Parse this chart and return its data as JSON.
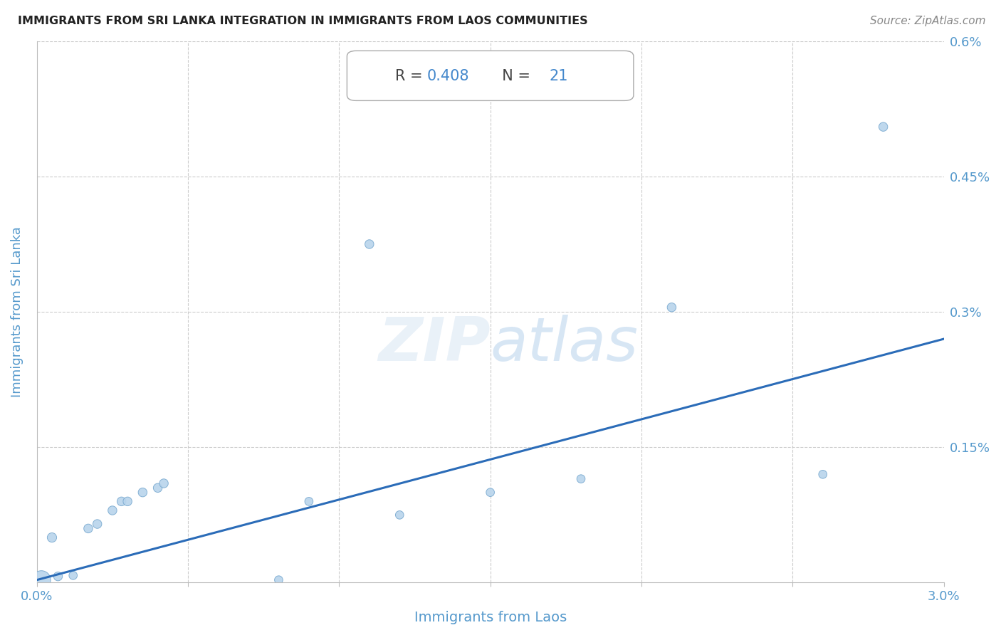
{
  "title": "IMMIGRANTS FROM SRI LANKA INTEGRATION IN IMMIGRANTS FROM LAOS COMMUNITIES",
  "source": "Source: ZipAtlas.com",
  "xlabel": "Immigrants from Laos",
  "ylabel": "Immigrants from Sri Lanka",
  "R": 0.408,
  "N": 21,
  "xlim": [
    0.0,
    0.03
  ],
  "ylim": [
    0.0,
    0.006
  ],
  "scatter_x": [
    0.00015,
    0.0005,
    0.0007,
    0.0012,
    0.0017,
    0.002,
    0.0025,
    0.0028,
    0.003,
    0.0035,
    0.004,
    0.0042,
    0.008,
    0.009,
    0.011,
    0.012,
    0.015,
    0.018,
    0.021,
    0.026,
    0.028
  ],
  "scatter_y": [
    3e-05,
    0.0005,
    7e-05,
    8e-05,
    0.0006,
    0.00065,
    0.0008,
    0.0009,
    0.0009,
    0.001,
    0.00105,
    0.0011,
    3e-05,
    0.0009,
    0.00375,
    0.00075,
    0.001,
    0.00115,
    0.00305,
    0.0012,
    0.00505
  ],
  "scatter_sizes": [
    350,
    90,
    80,
    70,
    80,
    80,
    80,
    80,
    80,
    80,
    80,
    80,
    70,
    70,
    80,
    70,
    70,
    70,
    80,
    70,
    80
  ],
  "line_x0": 0.0,
  "line_y0": 3e-05,
  "line_x1": 0.03,
  "line_y1": 0.0027,
  "dot_color": "#b8d4ec",
  "dot_edge_color": "#7aaad0",
  "line_color": "#2b6cb8",
  "watermark": "ZIPatlas",
  "background_color": "#ffffff",
  "grid_color": "#cccccc",
  "title_color": "#222222",
  "source_color": "#888888",
  "label_color": "#5599cc",
  "tick_color": "#5599cc"
}
